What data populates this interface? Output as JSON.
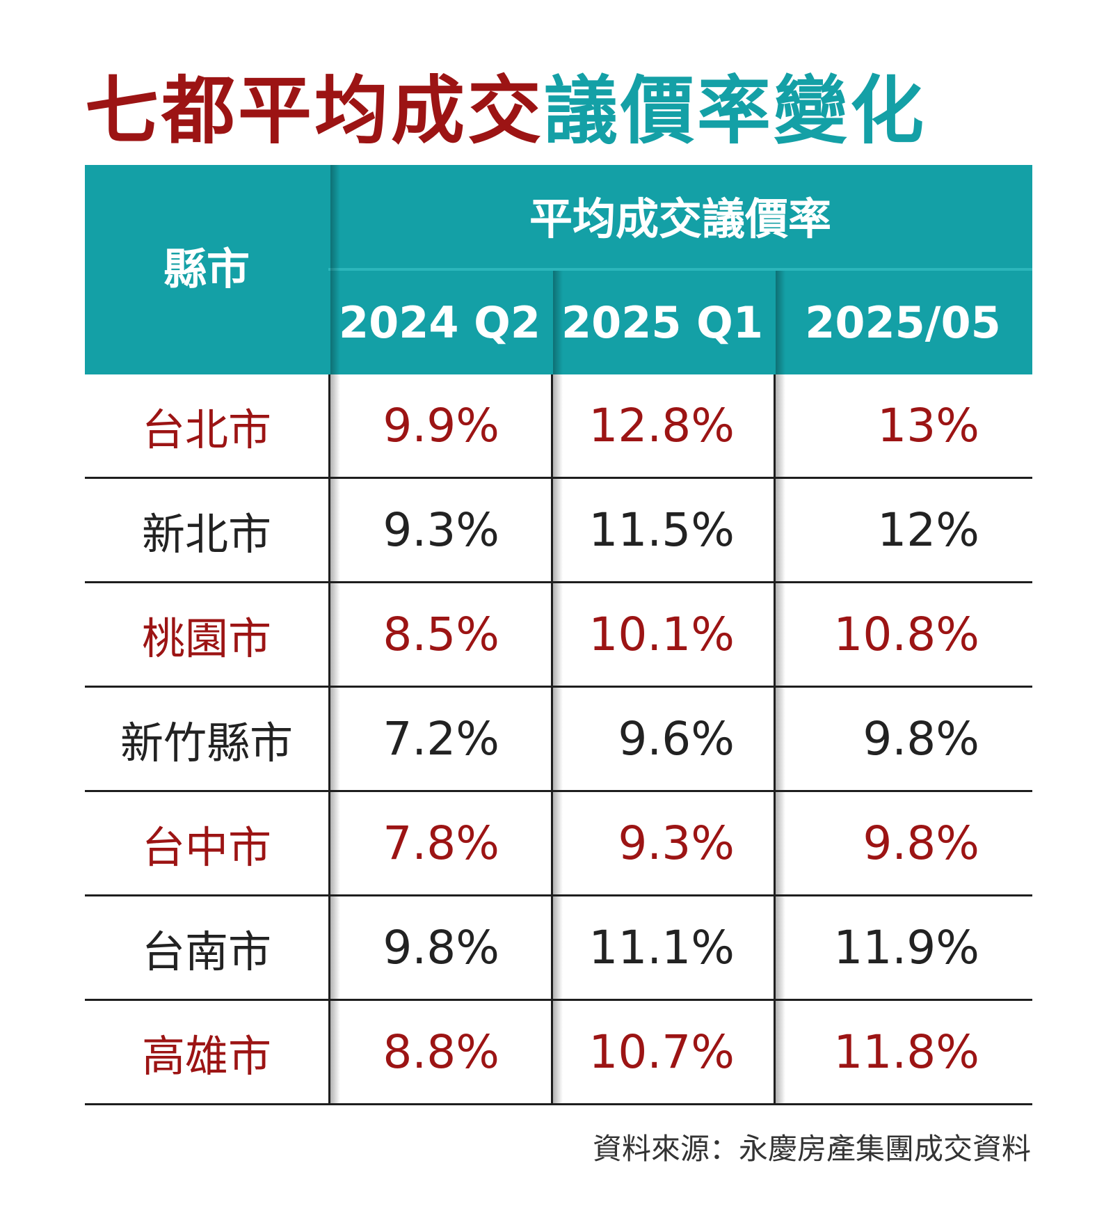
{
  "title": {
    "part1": "七都平均成交",
    "part2": "議價率變化"
  },
  "colors": {
    "highlight_red": "#9c1414",
    "teal": "#14a0a6",
    "text_black": "#222222"
  },
  "chart_data": {
    "type": "table",
    "title": "七都平均成交議價率變化",
    "header": {
      "county": "縣市",
      "group": "平均成交議價率",
      "columns": [
        "2024 Q2",
        "2025 Q1",
        "2025/05"
      ]
    },
    "rows": [
      {
        "county": "台北市",
        "values": [
          "9.9%",
          "12.8%",
          "13%"
        ],
        "highlight": true
      },
      {
        "county": "新北市",
        "values": [
          "9.3%",
          "11.5%",
          "12%"
        ],
        "highlight": false
      },
      {
        "county": "桃園市",
        "values": [
          "8.5%",
          "10.1%",
          "10.8%"
        ],
        "highlight": true
      },
      {
        "county": "新竹縣市",
        "values": [
          "7.2%",
          "9.6%",
          "9.8%"
        ],
        "highlight": false
      },
      {
        "county": "台中市",
        "values": [
          "7.8%",
          "9.3%",
          "9.8%"
        ],
        "highlight": true
      },
      {
        "county": "台南市",
        "values": [
          "9.8%",
          "11.1%",
          "11.9%"
        ],
        "highlight": false
      },
      {
        "county": "高雄市",
        "values": [
          "8.8%",
          "10.7%",
          "11.8%"
        ],
        "highlight": true
      }
    ]
  },
  "source": "資料來源：永慶房產集團成交資料"
}
